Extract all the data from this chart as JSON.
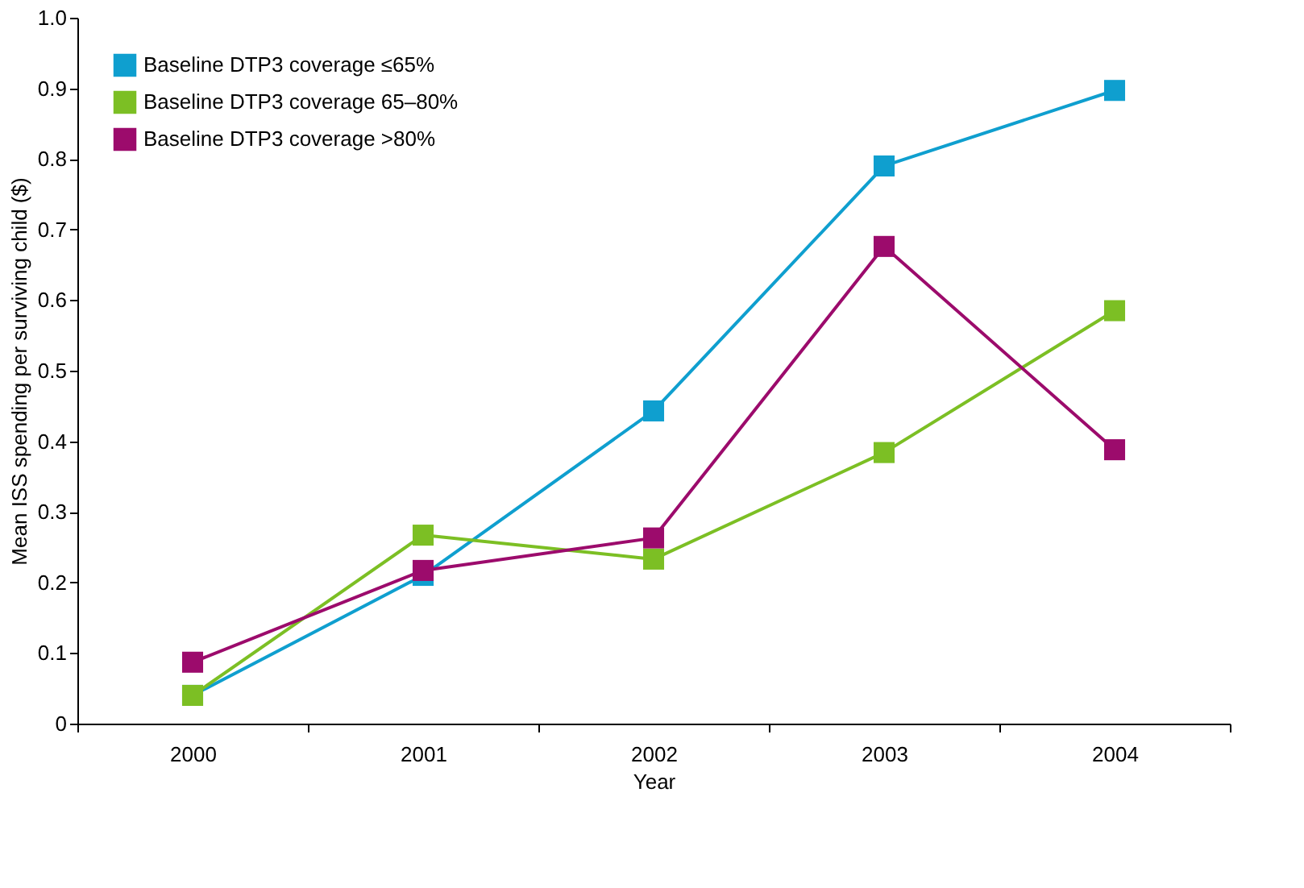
{
  "chart_data": {
    "type": "line",
    "xlabel": "Year",
    "ylabel": "Mean ISS spending per surviving child ($)",
    "categories": [
      "2000",
      "2001",
      "2002",
      "2003",
      "2004"
    ],
    "series": [
      {
        "name": "Baseline DTP3 coverage ≤65%",
        "color": "#0f9fcf",
        "values": [
          0.04,
          0.21,
          0.443,
          0.79,
          0.897
        ]
      },
      {
        "name": "Baseline DTP3 coverage 65–80%",
        "color": "#7cbf24",
        "values": [
          0.04,
          0.267,
          0.233,
          0.384,
          0.585
        ]
      },
      {
        "name": "Baseline DTP3 coverage >80%",
        "color": "#9c0b6c",
        "values": [
          0.087,
          0.217,
          0.263,
          0.676,
          0.388
        ]
      }
    ],
    "ylim": [
      0,
      1.0
    ],
    "yticks": [
      0,
      0.1,
      0.2,
      0.3,
      0.4,
      0.5,
      0.6,
      0.7,
      0.8,
      0.9,
      {
        "value": 1.0,
        "label": "1.0"
      }
    ],
    "grid": false,
    "legend": "top left",
    "marker": "square",
    "line_style": "solid"
  }
}
